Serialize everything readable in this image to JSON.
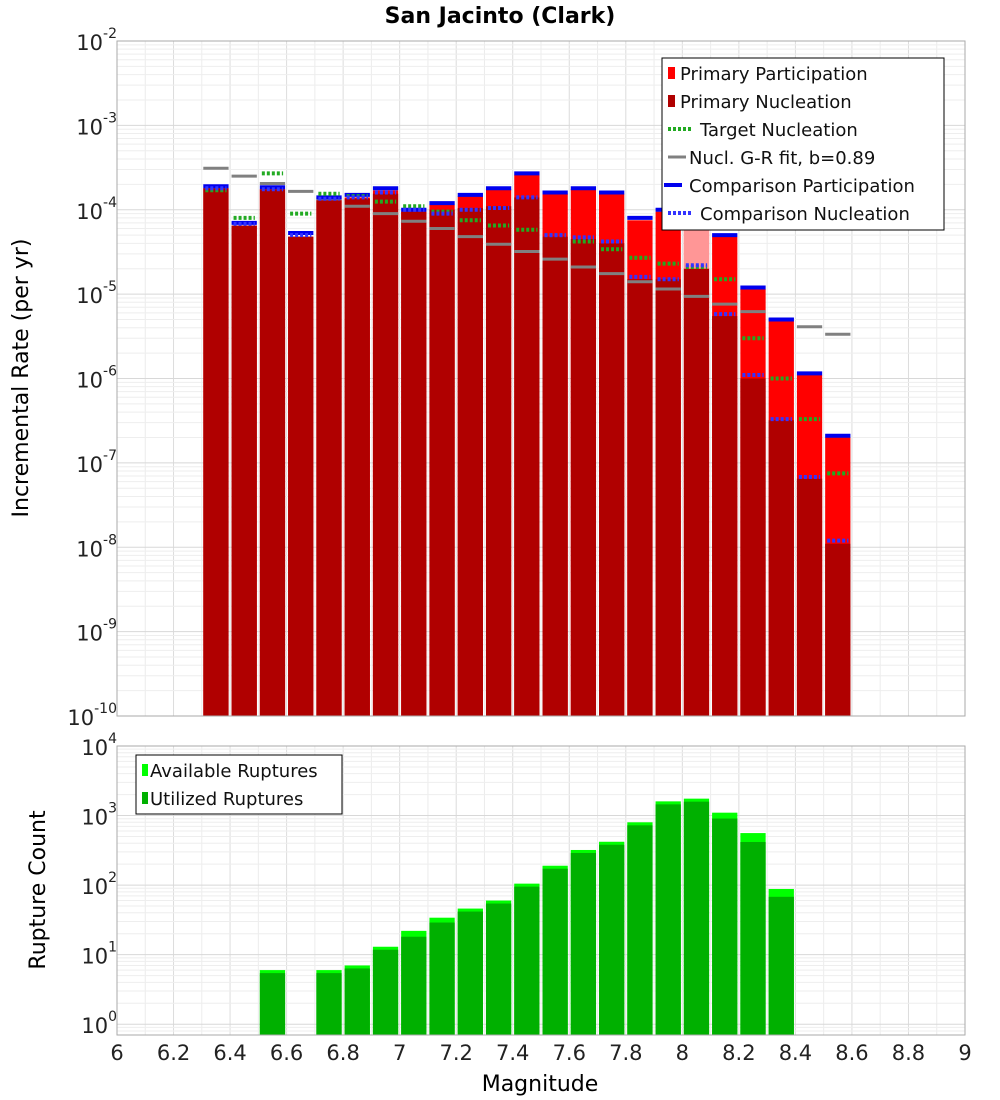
{
  "chart_data": [
    {
      "type": "bar",
      "title": "San Jacinto (Clark)",
      "ylabel": "Incremental Rate (per yr)",
      "xlabel": "",
      "xlim": [
        6,
        9
      ],
      "ylim": [
        1e-10,
        0.01
      ],
      "yscale": "log",
      "y_ticks": [
        {
          "base": "10",
          "exp": "-10"
        },
        {
          "base": "10",
          "exp": "-9"
        },
        {
          "base": "10",
          "exp": "-8"
        },
        {
          "base": "10",
          "exp": "-7"
        },
        {
          "base": "10",
          "exp": "-6"
        },
        {
          "base": "10",
          "exp": "-5"
        },
        {
          "base": "10",
          "exp": "-4"
        },
        {
          "base": "10",
          "exp": "-3"
        },
        {
          "base": "10",
          "exp": "-2"
        }
      ],
      "grid": true,
      "legend_position": "top-right",
      "legend": [
        "Primary Participation",
        "Primary Nucleation",
        "Target Nucleation",
        "Nucl. G-R fit, b=0.89",
        "Comparison Participation",
        "Comparison Nucleation"
      ],
      "colors": {
        "primary_participation": "#ff0000",
        "primary_nucleation": "#b00000",
        "target_nucleation": "#22aa22",
        "gr_fit": "#808080",
        "comparison_participation": "#0000ee",
        "comparison_nucleation": "#3333ff"
      },
      "x": [
        6.35,
        6.45,
        6.55,
        6.65,
        6.75,
        6.85,
        6.95,
        7.05,
        7.15,
        7.25,
        7.35,
        7.45,
        7.55,
        7.65,
        7.75,
        7.85,
        7.95,
        8.05,
        8.15,
        8.25,
        8.35,
        8.45,
        8.55
      ],
      "series": [
        {
          "values": [
            0.00018,
            6.5e-05,
            0.000175,
            4.8e-05,
            0.00013,
            0.00014,
            0.00017,
            9.5e-05,
            0.000115,
            0.000145,
            0.000175,
            0.00026,
            0.000155,
            0.000175,
            0.000155,
            7.5e-05,
            9.5e-05,
            0.00016,
            4.8e-05,
            1.15e-05,
            4.8e-06,
            1.1e-06,
            2e-07
          ]
        },
        {
          "values": [
            0.00018,
            6.5e-05,
            0.000175,
            4.8e-05,
            0.00013,
            0.000135,
            0.000155,
            9.5e-05,
            0.0001,
            0.000105,
            0.00011,
            0.00014,
            4.8e-05,
            4.5e-05,
            4e-05,
            1.5e-05,
            1.5e-05,
            2e-05,
            5.5e-06,
            1e-06,
            3.2e-07,
            6.5e-08,
            1.1e-08
          ]
        },
        {
          "values": [
            0.00017,
            8e-05,
            0.00027,
            9e-05,
            0.000155,
            0.000145,
            0.000125,
            0.00011,
            9.5e-05,
            7.5e-05,
            6.5e-05,
            5.8e-05,
            5e-05,
            4.2e-05,
            3.4e-05,
            2.7e-05,
            2.3e-05,
            2.1e-05,
            1.5e-05,
            3e-06,
            1e-06,
            3.3e-07,
            7.5e-08
          ]
        },
        {
          "values": [
            0.00031,
            0.00025,
            0.000205,
            0.000165,
            0.000135,
            0.00011,
            9e-05,
            7.3e-05,
            6e-05,
            4.8e-05,
            3.9e-05,
            3.2e-05,
            2.6e-05,
            2.1e-05,
            1.75e-05,
            1.4e-05,
            1.15e-05,
            9.4e-06,
            7.6e-06,
            6.2e-06,
            5e-06,
            4.1e-06,
            3.35e-06
          ]
        },
        {
          "values": [
            0.00019,
            7e-05,
            0.000185,
            5.3e-05,
            0.00014,
            0.00015,
            0.00018,
            0.0001,
            0.00012,
            0.00015,
            0.00018,
            0.00027,
            0.00016,
            0.00018,
            0.00016,
            8e-05,
            0.0001,
            0.00017,
            5e-05,
            1.2e-05,
            5e-06,
            1.15e-06,
            2.1e-07
          ]
        },
        {
          "values": [
            0.00018,
            6.8e-05,
            0.000175,
            5e-05,
            0.000135,
            0.00014,
            0.00016,
            0.0001,
            9e-05,
            0.0001,
            0.000105,
            0.00014,
            5e-05,
            4.7e-05,
            4.2e-05,
            1.6e-05,
            1.5e-05,
            2.2e-05,
            5.8e-06,
            1.1e-06,
            3.3e-07,
            6.8e-08,
            1.2e-08
          ]
        }
      ]
    },
    {
      "type": "bar",
      "title": "",
      "ylabel": "Rupture Count",
      "xlabel": "Magnitude",
      "xlim": [
        6,
        9
      ],
      "ylim": [
        0.7,
        10000
      ],
      "yscale": "log",
      "y_ticks": [
        {
          "base": "10",
          "exp": "0",
          "value": 1
        },
        {
          "base": "10",
          "exp": "1",
          "value": 10
        },
        {
          "base": "10",
          "exp": "2",
          "value": 100
        },
        {
          "base": "10",
          "exp": "3",
          "value": 1000
        },
        {
          "base": "10",
          "exp": "4",
          "value": 10000
        }
      ],
      "x_ticks": [
        "6",
        "6.2",
        "6.4",
        "6.6",
        "6.8",
        "7",
        "7.2",
        "7.4",
        "7.6",
        "7.8",
        "8",
        "8.2",
        "8.4",
        "8.6",
        "8.8",
        "9"
      ],
      "grid": true,
      "legend_position": "top-left",
      "legend": [
        "Available Ruptures",
        "Utilized Ruptures"
      ],
      "colors": {
        "available": "#00ff00",
        "utilized": "#00b000"
      },
      "x": [
        6.55,
        6.75,
        6.85,
        6.95,
        7.05,
        7.15,
        7.25,
        7.35,
        7.45,
        7.55,
        7.65,
        7.75,
        7.85,
        7.95,
        8.05,
        8.15,
        8.25,
        8.35
      ],
      "series": [
        {
          "values": [
            6,
            6,
            7,
            13,
            22,
            34,
            46,
            60,
            105,
            190,
            320,
            420,
            800,
            1600,
            1750,
            1100,
            560,
            88
          ]
        },
        {
          "values": [
            6,
            6,
            7,
            13,
            20,
            32,
            46,
            60,
            105,
            190,
            320,
            420,
            800,
            1600,
            1750,
            1000,
            460,
            75
          ]
        }
      ]
    }
  ]
}
